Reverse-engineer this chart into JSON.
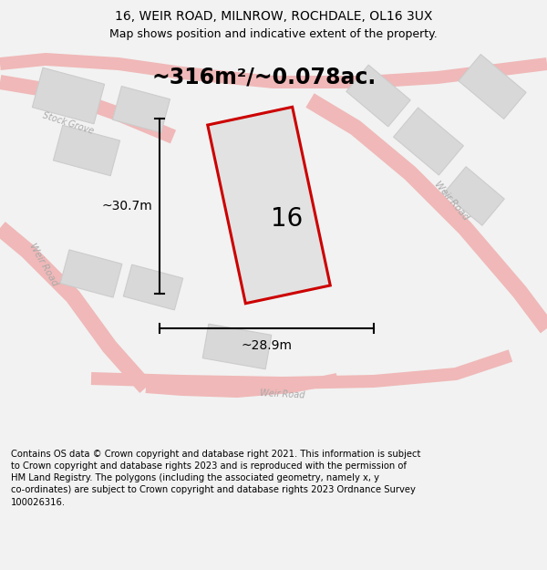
{
  "title": "16, WEIR ROAD, MILNROW, ROCHDALE, OL16 3UX",
  "subtitle": "Map shows position and indicative extent of the property.",
  "area_label": "~316m²/~0.078ac.",
  "plot_number": "16",
  "dim_height": "~30.7m",
  "dim_width": "~28.9m",
  "footer": "Contains OS data © Crown copyright and database right 2021. This information is subject to Crown copyright and database rights 2023 and is reproduced with the permission of HM Land Registry. The polygons (including the associated geometry, namely x, y co-ordinates) are subject to Crown copyright and database rights 2023 Ordnance Survey 100026316.",
  "bg_color": "#f2f2f2",
  "map_bg": "#ffffff",
  "road_color_pink": "#f0b8b8",
  "building_fill": "#d8d8d8",
  "building_edge": "#cccccc",
  "plot_fill": "#e2e2e2",
  "plot_outline": "#cc0000",
  "road_label_color": "#aaaaaa",
  "dim_color": "#000000",
  "title_fontsize": 10,
  "subtitle_fontsize": 9,
  "area_fontsize": 17,
  "plot_num_fontsize": 20,
  "dim_fontsize": 10,
  "footer_fontsize": 7.2,
  "road_label_fontsize": 7.5
}
